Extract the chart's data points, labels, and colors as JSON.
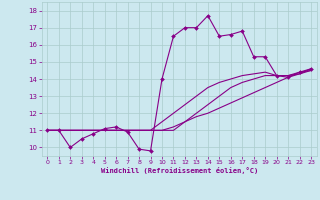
{
  "xlabel": "Windchill (Refroidissement éolien,°C)",
  "xlim": [
    -0.5,
    23.5
  ],
  "ylim": [
    9.5,
    18.5
  ],
  "xticks": [
    0,
    1,
    2,
    3,
    4,
    5,
    6,
    7,
    8,
    9,
    10,
    11,
    12,
    13,
    14,
    15,
    16,
    17,
    18,
    19,
    20,
    21,
    22,
    23
  ],
  "yticks": [
    10,
    11,
    12,
    13,
    14,
    15,
    16,
    17,
    18
  ],
  "background_color": "#cce8ef",
  "grid_color": "#aacccc",
  "line_color": "#880088",
  "series": [
    [
      11.0,
      11.0,
      10.0,
      10.5,
      10.8,
      11.1,
      11.2,
      10.9,
      9.9,
      9.8,
      14.0,
      16.5,
      17.0,
      17.0,
      17.7,
      16.5,
      16.6,
      16.8,
      15.3,
      15.3,
      14.2,
      14.1,
      14.4,
      14.6
    ],
    [
      11.0,
      11.0,
      11.0,
      11.0,
      11.0,
      11.0,
      11.0,
      11.0,
      11.0,
      11.0,
      11.0,
      11.2,
      11.5,
      11.8,
      12.0,
      12.3,
      12.6,
      12.9,
      13.2,
      13.5,
      13.8,
      14.1,
      14.3,
      14.5
    ],
    [
      11.0,
      11.0,
      11.0,
      11.0,
      11.0,
      11.0,
      11.0,
      11.0,
      11.0,
      11.0,
      11.5,
      12.0,
      12.5,
      13.0,
      13.5,
      13.8,
      14.0,
      14.2,
      14.3,
      14.4,
      14.2,
      14.2,
      14.4,
      14.5
    ],
    [
      11.0,
      11.0,
      11.0,
      11.0,
      11.0,
      11.0,
      11.0,
      11.0,
      11.0,
      11.0,
      11.0,
      11.0,
      11.5,
      12.0,
      12.5,
      13.0,
      13.5,
      13.8,
      14.0,
      14.2,
      14.2,
      14.2,
      14.3,
      14.6
    ]
  ]
}
